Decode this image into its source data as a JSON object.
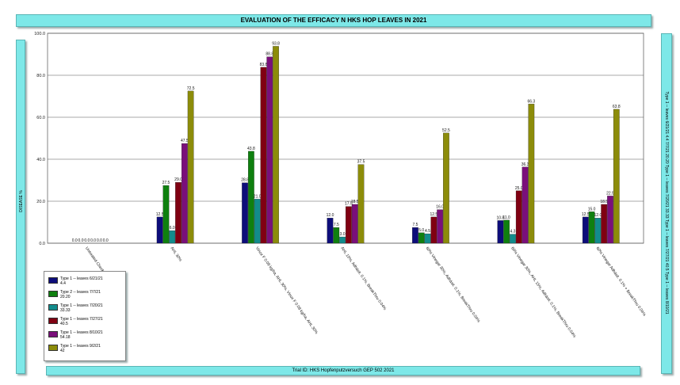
{
  "title": "EVALUATION OF THE EFFICACY N HKS HOP LEAVES IN 2021",
  "trial_id": "Trial ID: HKS Hopfenputzversuch GEP 502 2021",
  "ylabel": "DISEASE %",
  "right_text": "Type 1 -- leaves 6/21/21 4.4 7/7/21 20.20 Type 1 -- leaves 7/20/21 33.33 Type 1 -- leaves 7/27/21 40.5 Type 1 -- leaves 8/10/21",
  "legend": [
    {
      "label": "Type 1 -- leaves 6/21/21",
      "value": "4.4"
    },
    {
      "label": "Type 2 -- leaves 7/7/21",
      "value": "20.20"
    },
    {
      "label": "Type 1 -- leaves 7/20/21",
      "value": "33.33"
    },
    {
      "label": "Type 1 -- leaves 7/27/21",
      "value": "40.5"
    },
    {
      "label": "Type 1 -- leaves 8/10/21",
      "value": "54.18"
    },
    {
      "label": "Type 1 -- leaves 9/2/21",
      "value": "42"
    }
  ],
  "chart_data": {
    "type": "bar",
    "title": "EVALUATION OF THE EFFICACY N HKS HOP LEAVES IN 2021",
    "ylabel": "DISEASE %",
    "ylim": [
      0,
      100
    ],
    "yticks": [
      "0.0",
      "20.0",
      "40.0",
      "60.0",
      "80.0",
      "100.0"
    ],
    "grid": true,
    "legend_position": "bottom-left",
    "categories": [
      "Untreated Check",
      "AHL 30%",
      "Vinox F 0.09 kg/ha, AHL 30%, Vinox F 0.09 kg/ha, AHL 30%",
      "AHL 15%, Adhäsit. 0.1%, BreakThru 0.04%",
      "60% Vinegar 30%, Adhäsit. 0.1%, BreakThru 0.04%",
      "60% Vinegar 30%, AHL 15%, Adhäsit. 0.1%, BreakThru 0.04%",
      "60% Vinegar Adhäsit. 0.1% + BreakThru 0.04%"
    ],
    "colors": [
      "#0d0d7a",
      "#0f800f",
      "#128c8c",
      "#800012",
      "#7a0f7a",
      "#8c8c0a"
    ],
    "series": [
      {
        "name": "Type 1 -- leaves 6/21/21",
        "values": [
          0.0,
          12.5,
          28.8,
          12.0,
          7.5,
          10.8,
          12.5
        ],
        "labels": [
          "0.0",
          "12.5",
          "28.8",
          "12.0",
          "7.5",
          "10.8",
          "12.5"
        ]
      },
      {
        "name": "Type 2 -- leaves 7/7/21",
        "values": [
          0.0,
          27.5,
          43.8,
          7.5,
          5.0,
          11.0,
          15.0
        ],
        "labels": [
          "0.0",
          "27.5",
          "43.8",
          "7.5",
          "5.0",
          "11.0",
          "15.0"
        ]
      },
      {
        "name": "Type 1 -- leaves 7/20/21",
        "values": [
          0.0,
          6.0,
          21.0,
          3.0,
          4.5,
          4.3,
          12.0
        ],
        "labels": [
          "0.0",
          "6.0",
          "21.0",
          "3.0",
          "4.5",
          "4.3",
          "12.0"
        ]
      },
      {
        "name": "Type 1 -- leaves 7/27/21",
        "values": [
          0.0,
          29.0,
          83.8,
          17.5,
          12.5,
          25.0,
          18.5
        ],
        "labels": [
          "0.0",
          "29.0",
          "83.8",
          "17.5",
          "12.5",
          "25.0",
          "18.5"
        ]
      },
      {
        "name": "Type 1 -- leaves 8/10/21",
        "values": [
          0.0,
          47.5,
          88.8,
          18.5,
          16.0,
          36.3,
          22.5
        ],
        "labels": [
          "0.0",
          "47.5",
          "88.8",
          "18.5",
          "16.0",
          "36.3",
          "22.5"
        ]
      },
      {
        "name": "Type 1 -- leaves 9/2/21",
        "values": [
          0.0,
          72.5,
          93.8,
          37.5,
          52.5,
          66.3,
          63.8
        ],
        "labels": [
          "0.0",
          "72.5",
          "93.8",
          "37.5",
          "52.5",
          "66.3",
          "63.8"
        ]
      }
    ]
  }
}
